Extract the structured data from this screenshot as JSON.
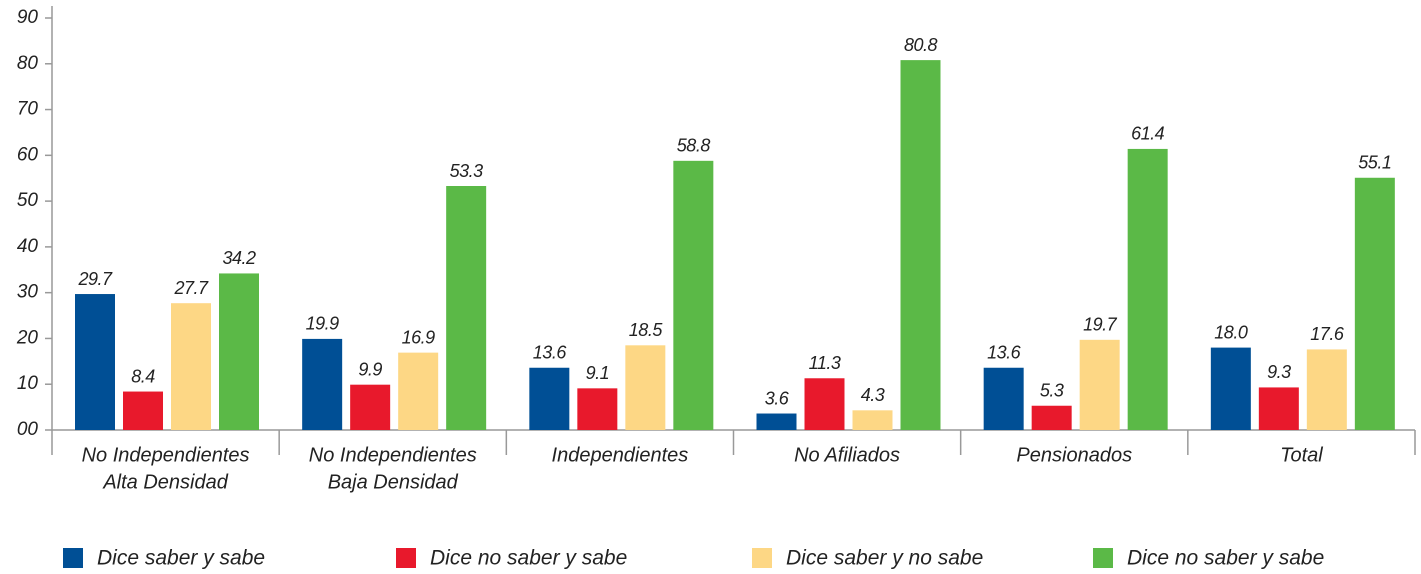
{
  "chart_data": {
    "type": "bar",
    "categories": [
      [
        "No Independientes",
        "Alta Densidad"
      ],
      [
        "No Independientes",
        "Baja Densidad"
      ],
      [
        "Independientes"
      ],
      [
        "No Afiliados"
      ],
      [
        "Pensionados"
      ],
      [
        "Total"
      ]
    ],
    "series": [
      {
        "name": "Dice saber y sabe",
        "color": "#004f95",
        "values": [
          29.7,
          19.9,
          13.6,
          3.6,
          13.6,
          18.0
        ],
        "value_labels": [
          "29.7",
          "19.9",
          "13.6",
          "3.6",
          "13.6",
          "18.0"
        ]
      },
      {
        "name": "Dice no saber y sabe",
        "color": "#e8192c",
        "values": [
          8.4,
          9.9,
          9.1,
          11.3,
          5.3,
          9.3
        ],
        "value_labels": [
          "8.4",
          "9.9",
          "9.1",
          "11.3",
          "5.3",
          "9.3"
        ]
      },
      {
        "name": "Dice saber y no sabe",
        "color": "#fdd785",
        "values": [
          27.7,
          16.9,
          18.5,
          4.3,
          19.7,
          17.6
        ],
        "value_labels": [
          "27.7",
          "16.9",
          "18.5",
          "4.3",
          "19.7",
          "17.6"
        ]
      },
      {
        "name": "Dice no saber y sabe",
        "color": "#5bb947",
        "values": [
          34.2,
          53.3,
          58.8,
          80.8,
          61.4,
          55.1
        ],
        "value_labels": [
          "34.2",
          "53.3",
          "58.8",
          "80.8",
          "61.4",
          "55.1"
        ]
      }
    ],
    "ylim": [
      0,
      90
    ],
    "yticks": [
      {
        "value": 0,
        "label": "00"
      },
      10,
      20,
      30,
      40,
      50,
      60,
      70,
      80,
      90
    ]
  }
}
